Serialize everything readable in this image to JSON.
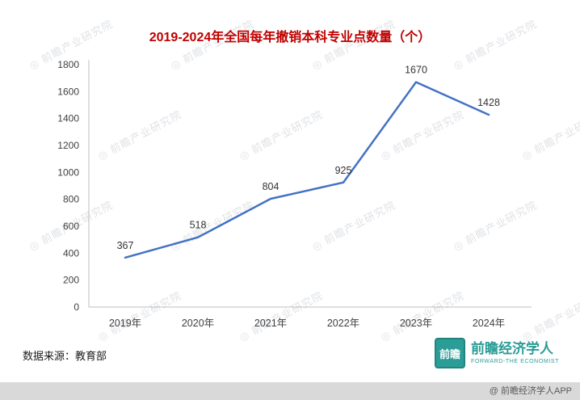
{
  "chart_data": {
    "type": "line",
    "title": "2019-2024年全国每年撤销本科专业点数量（个）",
    "categories": [
      "2019年",
      "2020年",
      "2021年",
      "2022年",
      "2023年",
      "2024年"
    ],
    "values": [
      367,
      518,
      804,
      925,
      1670,
      1428
    ],
    "ylim": [
      0,
      1800
    ],
    "ytick_step": 200,
    "grid": false,
    "legend": "none",
    "line_color": "#4472C4",
    "axis_color": "#BFBFBF",
    "title_color": "#C00000"
  },
  "source": {
    "text": "数据来源：教育部"
  },
  "watermark": {
    "text": "前瞻产业研究院",
    "icon_glyph": "◎"
  },
  "logo": {
    "badge_text": "前瞻",
    "name": "前瞻经济学人",
    "subtitle": "FORWARD-THE ECONOMIST",
    "color": "#2B9D97"
  },
  "footer": {
    "text": "@ 前瞻经济学人APP"
  }
}
